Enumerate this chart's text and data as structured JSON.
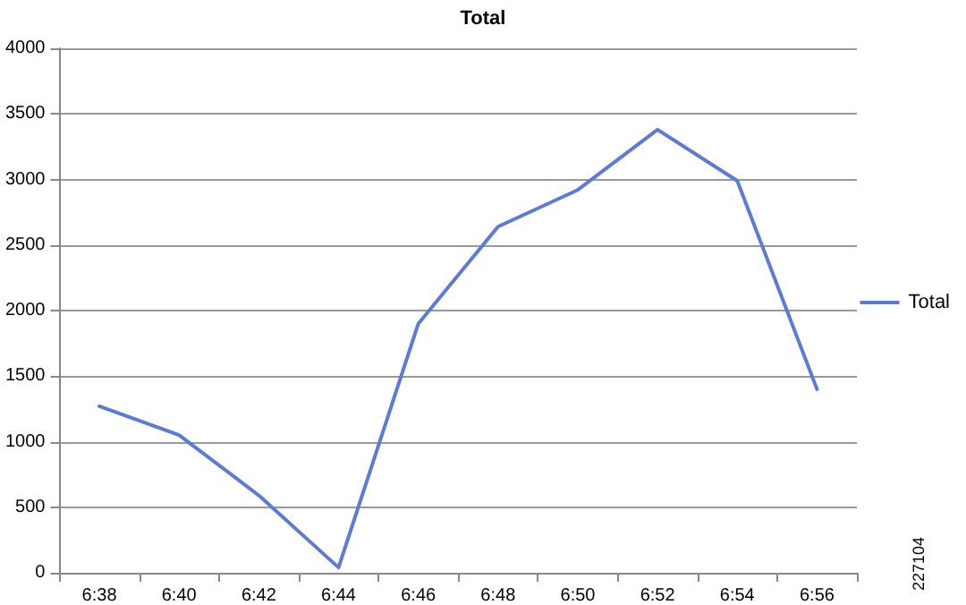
{
  "chart_data": {
    "type": "line",
    "title": "Total",
    "categories": [
      "6:38",
      "6:40",
      "6:42",
      "6:44",
      "6:46",
      "6:48",
      "6:50",
      "6:52",
      "6:54",
      "6:56"
    ],
    "series": [
      {
        "name": "Total",
        "color": "#5b7bd5",
        "values": [
          1270,
          1050,
          590,
          40,
          1900,
          2640,
          2920,
          3380,
          2990,
          1400
        ]
      }
    ],
    "ylim": [
      0,
      4000
    ],
    "yticks": [
      0,
      500,
      1000,
      1500,
      2000,
      2500,
      3000,
      3500,
      4000
    ],
    "grid": "y",
    "legend": "right",
    "marker": "none",
    "line_style": "solid",
    "annotations": [
      "227104"
    ]
  }
}
